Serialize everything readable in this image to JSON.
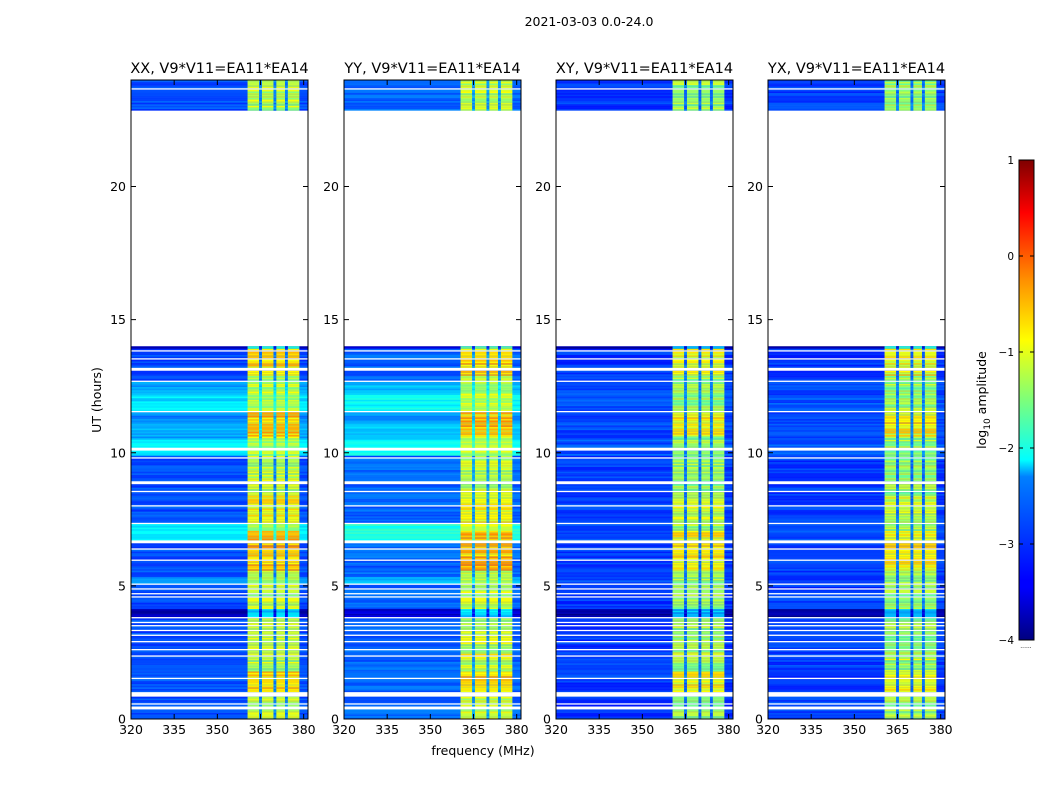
{
  "chart_data": {
    "type": "heatmap",
    "suptitle": "2021-03-03 0.0-24.0",
    "xlabel": "frequency (MHz)",
    "ylabel": "UT (hours)",
    "xlim": [
      320,
      381.5
    ],
    "ylim": [
      0,
      24
    ],
    "x_ticks": [
      320,
      335,
      350,
      365,
      380
    ],
    "y_ticks": [
      0,
      5,
      10,
      15,
      20
    ],
    "panels": [
      {
        "title": "XX, V9*V11=EA11*EA14",
        "baseline_level": -3.0,
        "rfi_level": -1.2,
        "broadband_excess": 0.9
      },
      {
        "title": "YY, V9*V11=EA11*EA14",
        "baseline_level": -2.9,
        "rfi_level": -1.15,
        "broadband_excess": 1.0
      },
      {
        "title": "XY, V9*V11=EA11*EA14",
        "baseline_level": -3.1,
        "rfi_level": -1.35,
        "broadband_excess": 0.15
      },
      {
        "title": "YX, V9*V11=EA11*EA14",
        "baseline_level": -3.1,
        "rfi_level": -1.35,
        "broadband_excess": 0.15
      }
    ],
    "rfi_band_mhz": [
      360.5,
      378.5
    ],
    "rfi_channel_gaps_mhz": [
      [
        364.5,
        365.5
      ],
      [
        369.5,
        370.5
      ],
      [
        373.5,
        374.5
      ]
    ],
    "data_coverage_hours": [
      [
        0,
        14
      ],
      [
        22.8,
        24
      ]
    ],
    "flagged_hours": [
      [
        0.35,
        0.45
      ],
      [
        0.55,
        0.63
      ],
      [
        0.85,
        1.0
      ],
      [
        1.5,
        1.56
      ],
      [
        1.78,
        1.82
      ],
      [
        2.08,
        2.12
      ],
      [
        2.35,
        2.4
      ],
      [
        2.58,
        2.62
      ],
      [
        2.9,
        2.95
      ],
      [
        3.15,
        3.2
      ],
      [
        3.33,
        3.38
      ],
      [
        3.48,
        3.52
      ],
      [
        3.62,
        3.66
      ],
      [
        3.78,
        3.82
      ],
      [
        4.55,
        4.6
      ],
      [
        4.7,
        4.74
      ],
      [
        4.85,
        4.9
      ],
      [
        5.05,
        5.1
      ],
      [
        5.95,
        6.0
      ],
      [
        6.35,
        6.4
      ],
      [
        6.62,
        6.72
      ],
      [
        7.05,
        7.1
      ],
      [
        7.3,
        7.4
      ],
      [
        8.0,
        8.05
      ],
      [
        8.5,
        8.55
      ],
      [
        8.8,
        8.95
      ],
      [
        9.8,
        9.85
      ],
      [
        10.1,
        10.2
      ],
      [
        11.55,
        11.6
      ],
      [
        12.1,
        12.15
      ],
      [
        12.4,
        12.45
      ],
      [
        12.65,
        12.75
      ],
      [
        13.08,
        13.2
      ],
      [
        13.5,
        13.55
      ],
      [
        13.82,
        13.86
      ],
      [
        22.8,
        22.84
      ],
      [
        23.65,
        23.7
      ]
    ],
    "broadband_bright_hours": [
      [
        5.1,
        5.35,
        0.4
      ],
      [
        6.7,
        7.3,
        0.9
      ],
      [
        9.9,
        10.5,
        0.9
      ],
      [
        10.5,
        11.2,
        0.5
      ],
      [
        11.2,
        11.5,
        0.3
      ],
      [
        11.6,
        12.2,
        0.8
      ],
      [
        12.2,
        12.7,
        0.5
      ]
    ],
    "rfi_bright_hours": [
      [
        1.0,
        1.8,
        0.5
      ],
      [
        2.2,
        2.5,
        0.3
      ],
      [
        5.6,
        7.1,
        0.6
      ],
      [
        7.3,
        8.4,
        0.3
      ],
      [
        10.6,
        11.6,
        0.6
      ],
      [
        12.9,
        14.0,
        0.5
      ]
    ],
    "dark_hours": [
      [
        3.85,
        4.15
      ],
      [
        13.95,
        14.0
      ]
    ],
    "colorbar": {
      "label": "log",
      "label_sub": "10",
      "label_suffix": " amplitude",
      "range": [
        -4,
        1
      ],
      "ticks": [
        1,
        0,
        -1,
        -2,
        -3,
        -4
      ],
      "tick_labels": [
        "1",
        "0",
        "−1",
        "−2",
        "−3",
        "−4"
      ],
      "colormap": "jet",
      "footnote": "......"
    }
  }
}
